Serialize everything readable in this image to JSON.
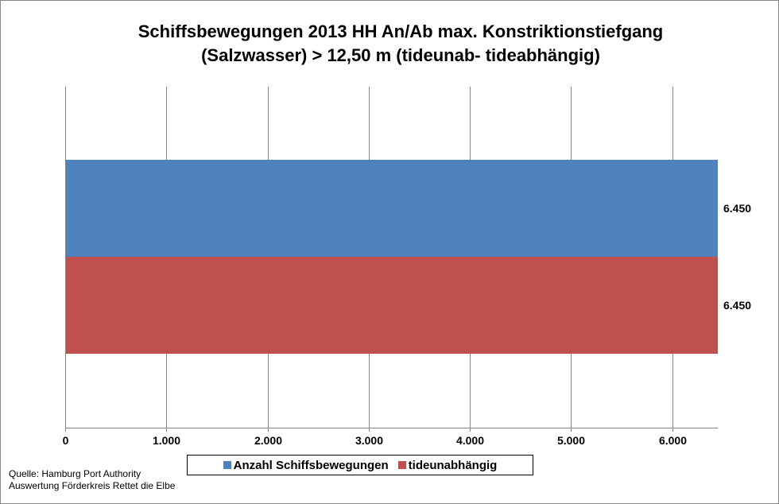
{
  "chart_data": {
    "type": "bar",
    "orientation": "horizontal",
    "title_line1": "Schiffsbewegungen 2013 HH An/Ab max. Konstriktionstiefgang",
    "title_line2": "(Salzwasser) >  12,50 m (tideunab- tideabhängig)",
    "xlim": [
      0,
      6450
    ],
    "x_ticks": [
      0,
      1000,
      2000,
      3000,
      4000,
      5000,
      6000
    ],
    "x_tick_labels": [
      "0",
      "1.000",
      "2.000",
      "3.000",
      "4.000",
      "5.000",
      "6.000"
    ],
    "grid": "vertical",
    "legend_position": "bottom",
    "series": [
      {
        "name": "Anzahl Schiffsbewegungen",
        "values": [
          6450
        ],
        "label": "6.450",
        "color": "#4f81bd"
      },
      {
        "name": "tideunabhängig",
        "values": [
          6450
        ],
        "label": "6.450",
        "color": "#c0504d"
      }
    ]
  },
  "footer": {
    "line1": "Quelle: Hamburg Port Authority",
    "line2": "Auswertung Förderkreis Rettet  die Elbe"
  }
}
